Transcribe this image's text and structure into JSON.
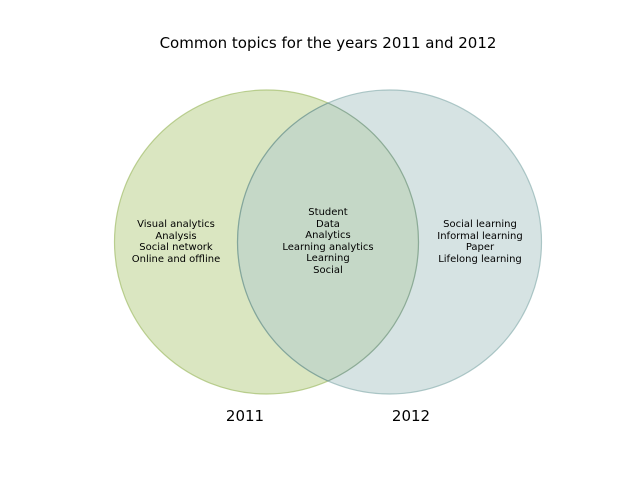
{
  "title": "Common topics for the years 2011 and 2012",
  "sets": [
    {
      "label": "2011",
      "color": "#bcd28e",
      "stroke": "#a3bd6b"
    },
    {
      "label": "2012",
      "color": "#b4cccc",
      "stroke": "#8fb2b2"
    }
  ],
  "overlap_color": "#a9c2b8",
  "regions": {
    "only_2011": [
      "Visual analytics",
      "Analysis",
      "Social network",
      "Online and offline"
    ],
    "both": [
      "Student",
      "Data",
      "Analytics",
      "Learning analytics",
      "Learning",
      "Social"
    ],
    "only_2012": [
      "Social learning",
      "Informal learning",
      "Paper",
      "Lifelong learning"
    ]
  }
}
